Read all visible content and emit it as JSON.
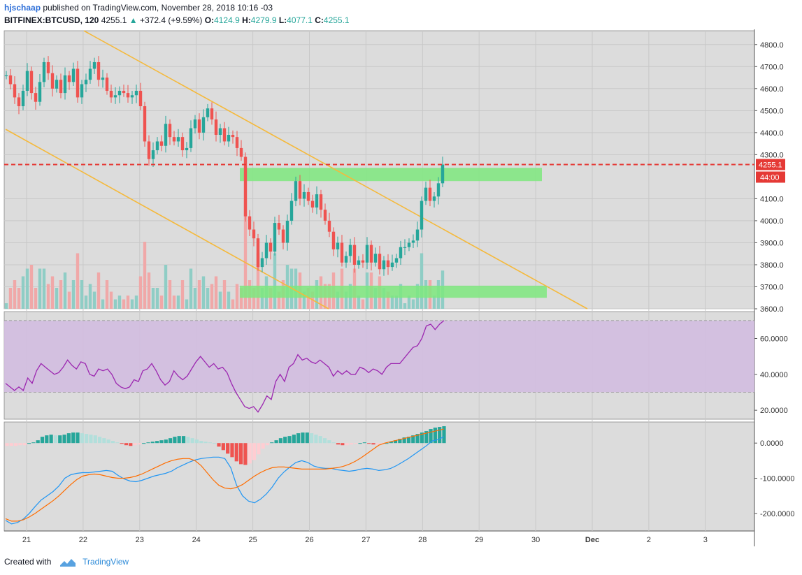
{
  "header": {
    "user": "hjschaap",
    "published_text": "published on TradingView.com, November 28, 2018 10:16 -03",
    "symbol": "BITFINEX:BTCUSD, 120",
    "last": "4255.1",
    "change": "+372.4 (+9.59%)",
    "o_label": "O:",
    "o_value": "4124.9",
    "h_label": "H:",
    "h_value": "4279.9",
    "l_label": "L:",
    "l_value": "4077.1",
    "c_label": "C:",
    "c_value": "4255.1"
  },
  "footer": {
    "created_with": "Created with",
    "brand": "TradingView"
  },
  "colors": {
    "up": "#26a69a",
    "down": "#ef5350",
    "vol_up": "#8fcdc5",
    "vol_down": "#f0a8a8",
    "zone": "#7ee87e",
    "trendline": "#f5b93b",
    "price_line": "#e53935",
    "rsi": "#9c27b0",
    "rsi_band": "#d2bde0",
    "macd": "#2196f3",
    "signal": "#ff6d00",
    "chart_bg": "#dcdcdc"
  },
  "chart_data": [
    {
      "type": "candlestick",
      "x_labels": [
        "21",
        "22",
        "23",
        "24",
        "25",
        "26",
        "27",
        "28",
        "29",
        "30",
        "Dec",
        "2",
        "3"
      ],
      "y_ticks": [
        "4800.0",
        "4700.0",
        "4600.0",
        "4500.0",
        "4400.0",
        "4300.0",
        "4100.0",
        "4000.0",
        "3900.0",
        "3800.0",
        "3700.0",
        "3600.0"
      ],
      "ylim": [
        3600,
        4850
      ],
      "last_price_label": "4255.1",
      "countdown_label": "44:00",
      "last_price": 4255.1,
      "price_start": 4660,
      "closes": [
        4660,
        4620,
        4560,
        4520,
        4590,
        4680,
        4580,
        4540,
        4630,
        4720,
        4670,
        4600,
        4640,
        4580,
        4660,
        4630,
        4690,
        4560,
        4620,
        4640,
        4690,
        4720,
        4640,
        4650,
        4590,
        4560,
        4570,
        4590,
        4580,
        4560,
        4570,
        4590,
        4520,
        4360,
        4280,
        4320,
        4360,
        4340,
        4440,
        4380,
        4360,
        4380,
        4320,
        4330,
        4420,
        4460,
        4400,
        4470,
        4510,
        4460,
        4390,
        4420,
        4360,
        4390,
        4380,
        4330,
        4290,
        4020,
        3960,
        3920,
        3790,
        3830,
        3900,
        3860,
        3990,
        3960,
        3900,
        4000,
        4090,
        4180,
        4100,
        4130,
        4090,
        4060,
        4120,
        4050,
        4000,
        3950,
        3870,
        3900,
        3810,
        3840,
        3890,
        3800,
        3820,
        3810,
        3890,
        3810,
        3850,
        3780,
        3820,
        3790,
        3810,
        3830,
        3880,
        3880,
        3900,
        3910,
        3960,
        4090,
        4150,
        4090,
        4110,
        4170,
        4255
      ],
      "volume_hint": "relative bars at the bottom of the price pane",
      "zones": [
        {
          "name": "resistance-zone",
          "low": 4180,
          "high": 4240
        },
        {
          "name": "support-zone",
          "low": 3650,
          "high": 3705
        }
      ]
    },
    {
      "type": "line",
      "name": "RSI",
      "y_ticks": [
        "60.0000",
        "40.0000",
        "20.0000"
      ],
      "ylim": [
        15,
        75
      ],
      "band": [
        30,
        70
      ],
      "values": [
        35,
        33,
        31,
        33,
        31,
        38,
        35,
        42,
        46,
        44,
        42,
        40,
        41,
        44,
        48,
        45,
        43,
        47,
        46,
        40,
        39,
        43,
        42,
        43,
        40,
        35,
        33,
        32,
        33,
        37,
        36,
        42,
        43,
        46,
        42,
        37,
        34,
        36,
        42,
        39,
        37,
        39,
        43,
        47,
        50,
        47,
        44,
        46,
        43,
        44,
        41,
        35,
        30,
        26,
        22,
        21,
        22,
        19,
        23,
        28,
        26,
        36,
        40,
        36,
        44,
        46,
        51,
        48,
        49,
        47,
        46,
        48,
        46,
        44,
        39,
        42,
        40,
        42,
        40,
        40,
        44,
        43,
        41,
        43,
        42,
        40,
        44,
        46,
        46,
        46,
        49,
        52,
        55,
        56,
        60,
        67,
        68,
        65,
        68,
        70
      ]
    },
    {
      "type": "bar+line",
      "name": "MACD",
      "y_ticks": [
        "0.0000",
        "-100.0000",
        "-200.0000"
      ],
      "ylim": [
        -250,
        60
      ],
      "histogram": [
        -8,
        -8,
        -8,
        -6,
        -6,
        0,
        2,
        8,
        18,
        22,
        24,
        22,
        22,
        24,
        28,
        30,
        30,
        28,
        26,
        24,
        22,
        18,
        14,
        10,
        6,
        2,
        -2,
        -6,
        -8,
        -6,
        -4,
        0,
        2,
        4,
        6,
        8,
        10,
        14,
        18,
        20,
        20,
        18,
        14,
        10,
        6,
        4,
        2,
        0,
        -10,
        -20,
        -30,
        -40,
        -52,
        -60,
        -62,
        -58,
        -48,
        -32,
        -16,
        -6,
        2,
        8,
        14,
        18,
        20,
        24,
        28,
        30,
        30,
        28,
        24,
        20,
        14,
        8,
        2,
        -4,
        -6,
        -6,
        -4,
        -2,
        0,
        2,
        -2,
        -4,
        -4,
        -2,
        0,
        4,
        8,
        12,
        16,
        18,
        22,
        26,
        30,
        34,
        40,
        44,
        46,
        48
      ],
      "macd": [
        -220,
        -230,
        -226,
        -216,
        -200,
        -180,
        -162,
        -150,
        -138,
        -122,
        -100,
        -90,
        -86,
        -84,
        -84,
        -82,
        -80,
        -78,
        -80,
        -92,
        -102,
        -108,
        -110,
        -106,
        -100,
        -94,
        -90,
        -86,
        -80,
        -70,
        -62,
        -54,
        -48,
        -44,
        -42,
        -40,
        -40,
        -44,
        -70,
        -120,
        -150,
        -165,
        -170,
        -160,
        -145,
        -125,
        -100,
        -82,
        -68,
        -55,
        -50,
        -55,
        -65,
        -70,
        -72,
        -72,
        -76,
        -78,
        -80,
        -78,
        -74,
        -72,
        -74,
        -78,
        -76,
        -72,
        -64,
        -54,
        -44,
        -32,
        -20,
        -8,
        6,
        10,
        18
      ],
      "signal": [
        -215,
        -222,
        -222,
        -218,
        -210,
        -200,
        -188,
        -176,
        -164,
        -150,
        -134,
        -118,
        -104,
        -94,
        -90,
        -88,
        -90,
        -94,
        -98,
        -100,
        -100,
        -98,
        -94,
        -88,
        -80,
        -72,
        -64,
        -56,
        -50,
        -46,
        -44,
        -44,
        -50,
        -64,
        -84,
        -104,
        -120,
        -128,
        -130,
        -126,
        -118,
        -106,
        -94,
        -84,
        -76,
        -70,
        -68,
        -68,
        -70,
        -72,
        -74,
        -74,
        -74,
        -74,
        -74,
        -72,
        -70,
        -66,
        -60,
        -52,
        -42,
        -30,
        -18,
        -6,
        0,
        4,
        8,
        12,
        16,
        20,
        24,
        28,
        32,
        36,
        40
      ]
    }
  ]
}
